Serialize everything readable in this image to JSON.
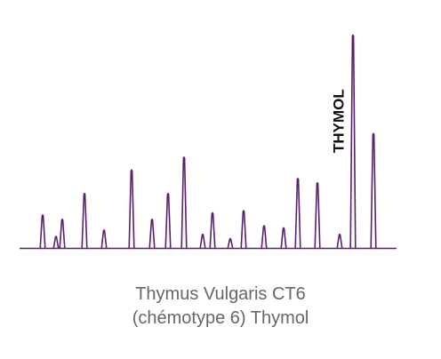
{
  "chart_data": {
    "type": "line",
    "title": "",
    "xlabel": "",
    "ylabel": "",
    "grid": false,
    "color": "#5a1f6e",
    "baseline_color": "#5a1f6e",
    "peaks": [
      {
        "x": 48,
        "height": 0.16
      },
      {
        "x": 63,
        "height": 0.06
      },
      {
        "x": 70,
        "height": 0.14
      },
      {
        "x": 95,
        "height": 0.26
      },
      {
        "x": 117,
        "height": 0.09
      },
      {
        "x": 148,
        "height": 0.37
      },
      {
        "x": 171,
        "height": 0.14
      },
      {
        "x": 189,
        "height": 0.26
      },
      {
        "x": 207,
        "height": 0.43
      },
      {
        "x": 228,
        "height": 0.07
      },
      {
        "x": 239,
        "height": 0.17
      },
      {
        "x": 259,
        "height": 0.05
      },
      {
        "x": 274,
        "height": 0.18
      },
      {
        "x": 297,
        "height": 0.11
      },
      {
        "x": 319,
        "height": 0.1
      },
      {
        "x": 335,
        "height": 0.33
      },
      {
        "x": 357,
        "height": 0.31
      },
      {
        "x": 382,
        "height": 0.07
      },
      {
        "x": 397,
        "height": 1.0,
        "label": "THYMOL"
      },
      {
        "x": 420,
        "height": 0.54
      }
    ],
    "xlim": [
      22,
      446
    ],
    "ylim": [
      0,
      1
    ]
  },
  "caption": {
    "line1": "Thymus Vulgaris CT6",
    "line2": "(chémotype 6) Thymol"
  }
}
